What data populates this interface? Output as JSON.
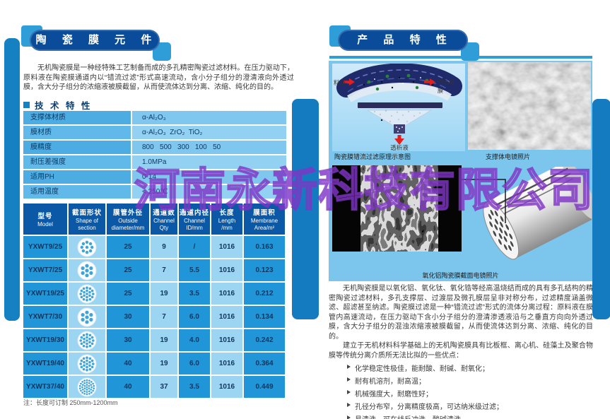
{
  "watermark": "河南永新科技有限公司",
  "colors": {
    "accent_blue": "#1580c2",
    "badge_blue": "#0a4c99",
    "light_square_blue": "#2f9ed8",
    "panel_blue": "#7cc6ee",
    "table_header_blue": "#0a58a6",
    "cell_dark_blue": "#2095d7",
    "cell_light_blue": "#9cd5f2",
    "watermark_purple": "#8034c4",
    "arrow_red": "#e31e1e"
  },
  "left_page": {
    "header": "陶 瓷 膜 元 件",
    "intro": "无机陶瓷膜是一种经特殊工艺制备而成的多孔精密陶瓷过滤材料。在压力驱动下，原料液在陶瓷膜通道内以“错流过滤”形式高速流动，含小分子组分的澄清液向外透过膜，含大分子组分的浓缩液被膜截留，从而使流体达到分离、浓缩、纯化的目的。",
    "spec_section_title": "技 术 特 性",
    "specs": [
      {
        "label": "支撑体材质",
        "value": "α-Al₂O₃"
      },
      {
        "label": "膜材质",
        "value": "α-Al₂O₃  ZrO₂  TiO₂"
      },
      {
        "label": "膜精度",
        "value": "800   500   300   100   50"
      },
      {
        "label": "耐压差强度",
        "value": "1.0MPa"
      },
      {
        "label": "适用PH",
        "value": "0-14"
      },
      {
        "label": "适用温度",
        "value": "< 250℃"
      }
    ],
    "model_table": {
      "headers": [
        {
          "zh": "型号",
          "en": "Model"
        },
        {
          "zh": "截面形状",
          "en": "Shape of\nsection"
        },
        {
          "zh": "膜管外径",
          "en": "Outside\ndiameter/mm"
        },
        {
          "zh": "通道数",
          "en": "Channel\nQty"
        },
        {
          "zh": "通道内径",
          "en": "Channel\nID/mm"
        },
        {
          "zh": "长度",
          "en": "Length\n/mm"
        },
        {
          "zh": "膜面积",
          "en": "Membrane\nArea/m²"
        }
      ],
      "rows": [
        {
          "model": "YXWT9/25",
          "od": "25",
          "qty": "9",
          "id": "/",
          "length": "1016",
          "area": "0.163",
          "holes": 9
        },
        {
          "model": "YXWT7/25",
          "od": "25",
          "qty": "7",
          "id": "5.5",
          "length": "1016",
          "area": "0.123",
          "holes": 7
        },
        {
          "model": "YXWT19/25",
          "od": "25",
          "qty": "19",
          "id": "3.5",
          "length": "1016",
          "area": "0.212",
          "holes": 19
        },
        {
          "model": "YXWT7/30",
          "od": "30",
          "qty": "7",
          "id": "6.0",
          "length": "1016",
          "area": "0.134",
          "holes": 7
        },
        {
          "model": "YXWT19/30",
          "od": "30",
          "qty": "19",
          "id": "4.0",
          "length": "1016",
          "area": "0.242",
          "holes": 19
        },
        {
          "model": "YXWT19/40",
          "od": "40",
          "qty": "19",
          "id": "6.0",
          "length": "1016",
          "area": "0.364",
          "holes": 19
        },
        {
          "model": "YXWT37/40",
          "od": "40",
          "qty": "37",
          "id": "3.5",
          "length": "1016",
          "area": "0.449",
          "holes": 37
        }
      ],
      "note": "注：长度可订制 250mm-1200mm"
    }
  },
  "right_page": {
    "header": "产 品 特 性",
    "diagram": {
      "label_feed": "料液",
      "label_reflux": "回流液",
      "label_membrane": "膜",
      "label_permeate": "透析液",
      "caption": "陶瓷膜错流过滤原理示意图"
    },
    "sem_caption": "支撑体电镜照片",
    "cross_section_caption": "氧化铝陶瓷膜截面电镜照片",
    "para1": "无机陶瓷膜是以氧化铝、氧化钛、氧化锆等经高温烧结而成的具有多孔结构的精密陶瓷过滤材料，多孔支撑层、过渡层及微孔膜层呈非对称分布，过滤精度涵盖微滤、超滤甚至纳滤。陶瓷膜过滤是一种“错流过滤”形式的流体分离过程：原料液在膜管内高速流动，在压力驱动下含小分子组分的澄清渗透液沿与之垂直方向向外透过膜，含大分子组分的混浊浓缩液被膜截留，从而使流体达到分离、浓缩、纯化的目的。",
    "para2": "建立于无机材料科学基础上的无机陶瓷膜具有比板框、离心机、硅藻土及聚合物膜等传统分离介质所无法比拟的一些优点：",
    "bullets": [
      "化学稳定性极佳，能耐酸、耐碱、耐氧化；",
      "耐有机溶剂，耐高温；",
      "机械强度大，耐磨性好；",
      "孔径分布窄，分离精度极高，可达纳米级过滤；",
      "易清洗，可在线反冲洗，酸碱清洗。"
    ]
  }
}
